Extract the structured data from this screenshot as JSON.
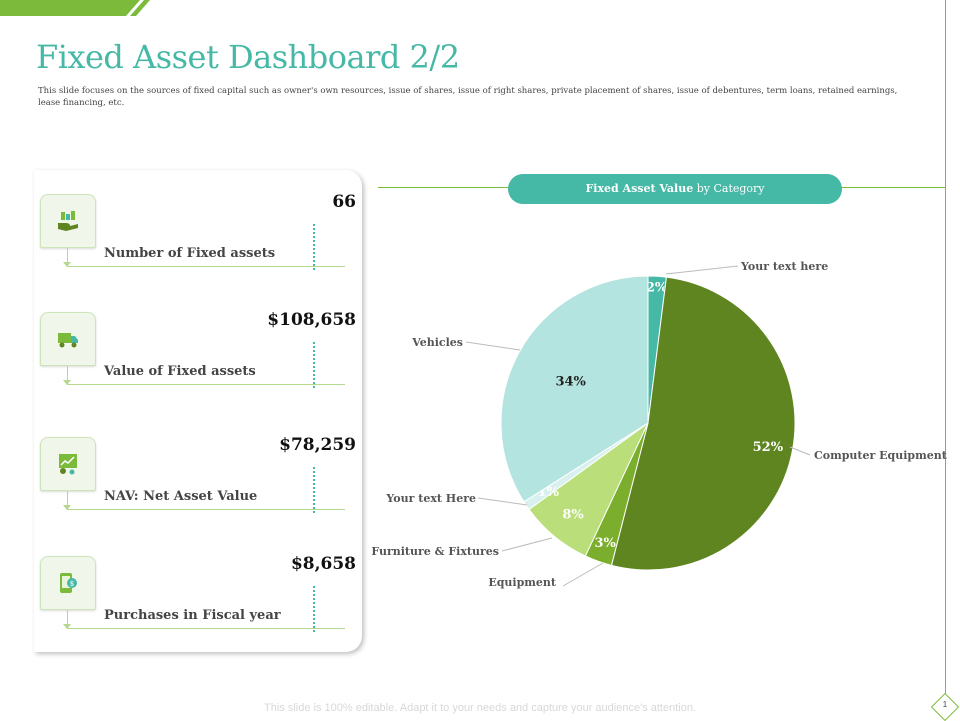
{
  "header": {
    "title": "Fixed Asset Dashboard 2/2",
    "subtitle": "This slide focuses on the sources of fixed capital such as owner's own resources, issue of shares, issue of right shares, private placement of shares, issue of debentures, term loans, retained earnings, lease financing, etc."
  },
  "kpis": [
    {
      "label": "Number of Fixed assets",
      "value": "66",
      "icon": "money-hand-icon"
    },
    {
      "label": "Value of Fixed assets",
      "value": "$108,658",
      "icon": "truck-icon"
    },
    {
      "label": "NAV: Net Asset Value",
      "value": "$78,259",
      "icon": "growth-chart-gear-icon"
    },
    {
      "label": "Purchases in Fiscal year",
      "value": "$8,658",
      "icon": "mobile-payment-icon"
    }
  ],
  "chart_header": {
    "bold": "Fixed Asset Value",
    "rest": " by Category"
  },
  "chart_data": {
    "type": "pie",
    "title": "Fixed Asset Value by Category",
    "slices": [
      {
        "label": "Your text here",
        "value": 2,
        "pct_label": "2%",
        "color": "#45b8a6"
      },
      {
        "label": "Computer Equipment",
        "value": 52,
        "pct_label": "52%",
        "color": "#5e8520"
      },
      {
        "label": "Equipment",
        "value": 3,
        "pct_label": "3%",
        "color": "#7aae2c"
      },
      {
        "label": "Furniture & Fixtures",
        "value": 8,
        "pct_label": "8%",
        "color": "#b9de7a"
      },
      {
        "label": "Your text Here",
        "value": 1,
        "pct_label": "1%",
        "color": "#d8f0ee"
      },
      {
        "label": "Vehicles",
        "value": 34,
        "pct_label": "34%",
        "color": "#b3e4df"
      }
    ]
  },
  "footer": {
    "text": "This slide is 100% editable. Adapt it to your needs and capture your audience's attention."
  },
  "page": {
    "number": "1"
  },
  "colors": {
    "accent_teal": "#45b8a6",
    "accent_green": "#7cba3c"
  }
}
